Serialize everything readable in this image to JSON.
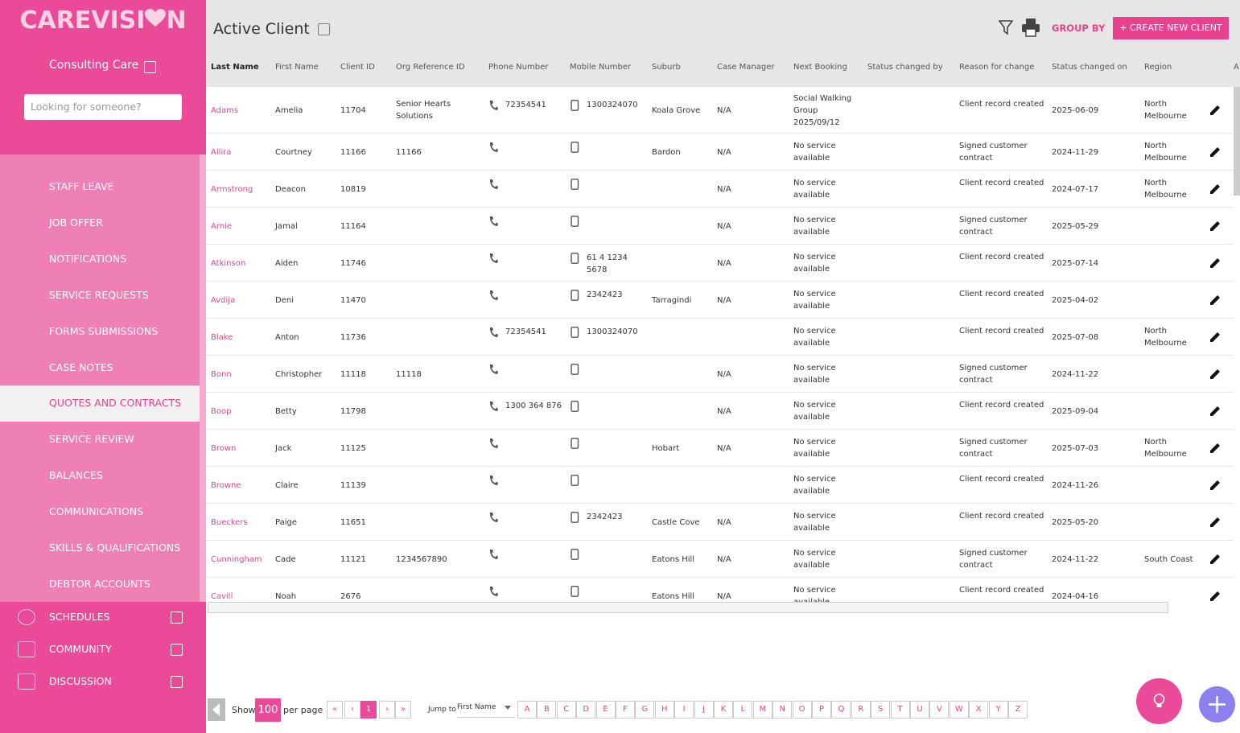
{
  "sidebar": {
    "logo": [
      "CAREVISI",
      "N"
    ],
    "organisation": "Consulting Care",
    "search_placeholder": "Looking for someone?",
    "menu": [
      "STAFF LEAVE",
      "JOB OFFER",
      "NOTIFICATIONS",
      "SERVICE REQUESTS",
      "FORMS SUBMISSIONS",
      "CASE NOTES",
      "QUOTES AND CONTRACTS",
      "SERVICE REVIEW",
      "BALANCES",
      "COMMUNICATIONS",
      "SKILLS & QUALIFICATIONS",
      "DEBTOR ACCOUNTS"
    ],
    "sections": [
      "SCHEDULES",
      "COMMUNITY",
      "DISCUSSION"
    ]
  },
  "header": {
    "title": "Active Client",
    "group_by": "GROUP BY",
    "create_button": "+ CREATE NEW CLIENT"
  },
  "table": {
    "columns": [
      "Last Name",
      "First Name",
      "Client ID",
      "Org Reference ID",
      "Phone Number",
      "Mobile Number",
      "Suburb",
      "Case Manager",
      "Next Booking",
      "Status changed by",
      "Reason for change",
      "Status changed on",
      "Region",
      "A"
    ],
    "rows": [
      [
        "Adams",
        "Amelia",
        "11704",
        "Senior Hearts Solutions",
        "72354541",
        "1300324070",
        "Koala Grove",
        "N/A",
        "Social Walking Group 2025/09/12",
        null,
        "Client record created",
        "2025-06-09",
        "North Melbourne"
      ],
      [
        "Allira",
        "Courtney",
        "11166",
        "11166",
        null,
        null,
        "Bardon",
        "N/A",
        "No service available",
        null,
        "Signed customer contract",
        "2024-11-29",
        "North Melbourne"
      ],
      [
        "Armstrong",
        "Deacon",
        "10819",
        null,
        null,
        null,
        null,
        "N/A",
        "No service available",
        null,
        "Client record created",
        "2024-07-17",
        "North Melbourne"
      ],
      [
        "Arnie",
        "Jamal",
        "11164",
        null,
        null,
        null,
        null,
        "N/A",
        "No service available",
        null,
        "Signed customer contract",
        "2025-05-29",
        null
      ],
      [
        "Atkinson",
        "Aiden",
        "11746",
        null,
        null,
        "61 4 1234 5678",
        null,
        "N/A",
        "No service available",
        null,
        "Client record created",
        "2025-07-14",
        null
      ],
      [
        "Avdija",
        "Deni",
        "11470",
        null,
        null,
        "2342423",
        "Tarragindi",
        "N/A",
        "No service available",
        null,
        "Client record created",
        "2025-04-02",
        null
      ],
      [
        "Blake",
        "Anton",
        "11736",
        null,
        "72354541",
        "1300324070",
        null,
        null,
        "No service available",
        null,
        "Client record created",
        "2025-07-08",
        "North Melbourne"
      ],
      [
        "Bonn",
        "Christopher",
        "11118",
        "11118",
        null,
        null,
        null,
        "N/A",
        "No service available",
        null,
        "Signed customer contract",
        "2024-11-22",
        null
      ],
      [
        "Boop",
        "Betty",
        "11798",
        null,
        "1300 364 876",
        null,
        null,
        "N/A",
        "No service available",
        null,
        "Client record created",
        "2025-09-04",
        null
      ],
      [
        "Brown",
        "Jack",
        "11125",
        null,
        null,
        null,
        "Hobart",
        "N/A",
        "No service available",
        null,
        "Signed customer contract",
        "2025-07-03",
        "North Melbourne"
      ],
      [
        "Browne",
        "Claire",
        "11139",
        null,
        null,
        null,
        null,
        null,
        "No service available",
        null,
        "Client record created",
        "2024-11-26",
        null
      ],
      [
        "Bueckers",
        "Paige",
        "11651",
        null,
        null,
        "2342423",
        "Castle Cove",
        "N/A",
        "No service available",
        null,
        "Client record created",
        "2025-05-20",
        null
      ],
      [
        "Cunningham",
        "Cade",
        "11121",
        "1234567890",
        null,
        null,
        "Eatons Hill",
        "N/A",
        "No service available",
        null,
        "Signed customer contract",
        "2024-11-22",
        "South Coast"
      ],
      [
        "Cavill",
        "Noah",
        "2676",
        null,
        null,
        null,
        "Eatons Hill",
        "N/A",
        "No service available",
        null,
        "Client record created",
        "2024-04-16",
        null
      ]
    ]
  },
  "pagination": {
    "show": "Show",
    "per_page_value": "100",
    "per_page": "per page",
    "pages": [
      "«",
      "‹",
      "1",
      "›",
      "»"
    ],
    "jump_to": "Jump to",
    "jump_field": "First Name",
    "letters": [
      "A",
      "B",
      "C",
      "D",
      "E",
      "F",
      "G",
      "H",
      "I",
      "J",
      "K",
      "L",
      "M",
      "N",
      "O",
      "P",
      "Q",
      "R",
      "S",
      "T",
      "U",
      "V",
      "W",
      "X",
      "Y",
      "Z"
    ]
  }
}
